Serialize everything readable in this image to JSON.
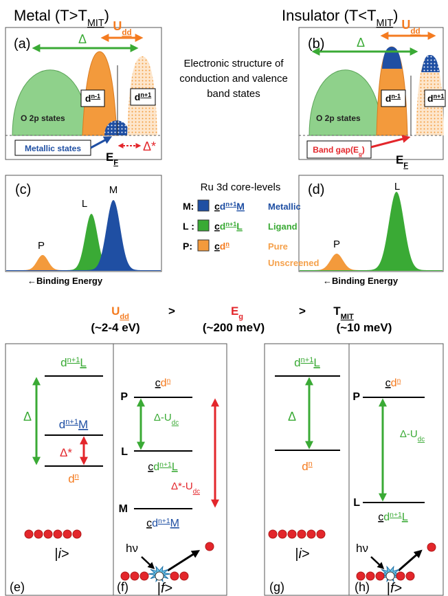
{
  "headings": {
    "metal": [
      "Metal (T>T",
      "MIT",
      ")"
    ],
    "insulator": [
      "Insulator (T<T",
      "MIT",
      ")"
    ]
  },
  "panel_a": {
    "label": "(a)",
    "u_dd": [
      "U",
      "dd"
    ],
    "delta": "Δ",
    "d_n_minus_1": [
      "d",
      "n-1"
    ],
    "d_n_plus_1": [
      "d",
      "n+1"
    ],
    "o2p": "O 2p states",
    "metallic_states": "Metallic states",
    "delta_star": "Δ*",
    "e_f": [
      "E",
      "F"
    ]
  },
  "caption": [
    "Electronic structure of",
    "conduction and valence",
    "band states"
  ],
  "panel_b": {
    "label": "(b)",
    "u_dd": [
      "U",
      "dd"
    ],
    "delta": "Δ",
    "d_n_minus_1": [
      "d",
      "n-1"
    ],
    "d_n_plus_1": [
      "d",
      "n+1"
    ],
    "o2p": "O 2p states",
    "band_gap": [
      "Band gap(E",
      "g",
      ")"
    ],
    "e_f": [
      "E",
      "F"
    ]
  },
  "panel_c": {
    "label": "(c)",
    "peaks": [
      "P",
      "L",
      "M"
    ],
    "axis": "←Binding Energy"
  },
  "legend": {
    "title": "Ru 3d core-levels",
    "rows": [
      {
        "key": "M:",
        "term": [
          "c",
          "d",
          "n+1",
          "M"
        ],
        "name": [
          "Metallic"
        ]
      },
      {
        "key": "L :",
        "term": [
          "c",
          "d",
          "n+1",
          "L"
        ],
        "name": [
          "Ligand"
        ]
      },
      {
        "key": "P:",
        "term": [
          "c",
          "d",
          "n"
        ],
        "name": [
          "Pure",
          "Unscreened"
        ]
      }
    ]
  },
  "panel_d": {
    "label": "(d)",
    "peaks": [
      "P",
      "L"
    ],
    "axis": "←Binding Energy"
  },
  "scales": {
    "u_dd": [
      "U",
      "dd"
    ],
    "gt_1": ">",
    "e_g": [
      "E",
      "g"
    ],
    "gt_2": ">",
    "t_mit": [
      "T",
      "MIT"
    ],
    "u_dd_value": "(~2-4 eV)",
    "e_g_value": "(~200 meV)",
    "t_mit_value": "(~10 meV)"
  },
  "panel_e": {
    "label": "(e)",
    "levels": [
      [
        "d",
        "n+1",
        "L"
      ],
      [
        "d",
        "n+1",
        "M"
      ],
      [
        "d",
        "n"
      ]
    ],
    "delta": "Δ",
    "delta_star": "Δ*",
    "state": [
      "|",
      "i",
      ">"
    ]
  },
  "panel_f": {
    "label": "(f)",
    "levels": [
      {
        "letter": "P",
        "term": [
          "c",
          "d",
          "n"
        ]
      },
      {
        "letter": "L",
        "term": [
          "c",
          "d",
          "n+1",
          "L"
        ]
      },
      {
        "letter": "M",
        "term": [
          "c",
          "d",
          "n+1",
          "M"
        ]
      }
    ],
    "delta_u_dc": [
      "Δ-U",
      "dc"
    ],
    "delta_star_u_dc": [
      "Δ*-U",
      "dc"
    ],
    "photon": "hν",
    "state": [
      "|",
      "f",
      ">"
    ]
  },
  "panel_g": {
    "label": "(g)",
    "levels": [
      [
        "d",
        "n+1",
        "L"
      ],
      [
        "d",
        "n"
      ]
    ],
    "delta": "Δ",
    "state": [
      "|",
      "i",
      ">"
    ]
  },
  "panel_h": {
    "label": "(h)",
    "levels": [
      {
        "letter": "P",
        "term": [
          "c",
          "d",
          "n"
        ]
      },
      {
        "letter": "L",
        "term": [
          "c",
          "d",
          "n+1",
          "L"
        ]
      }
    ],
    "delta_u_dc": [
      "Δ-U",
      "dc"
    ],
    "photon": "hν",
    "state": [
      "|",
      "f",
      ">"
    ]
  }
}
